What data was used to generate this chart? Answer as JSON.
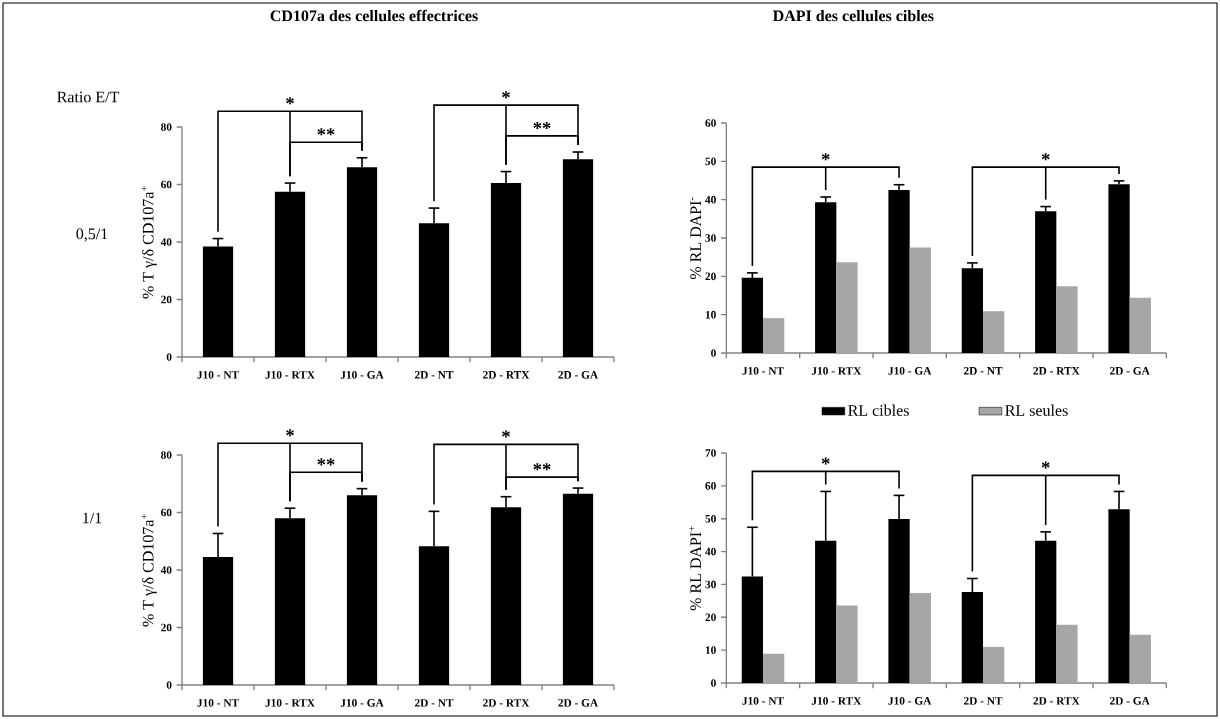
{
  "chart_data": [
    {
      "type": "bar",
      "title": "CD107a des cellules effectrices",
      "ylabel": "% T γ/δ CD107a$^{+}$",
      "categories": [
        "J10 - NT",
        "J10 - RTX",
        "J10 - GA",
        "2D - NT",
        "2D - RTX",
        "2D - GA"
      ],
      "series": [
        {
          "color": "#000000",
          "values": [
            38.4,
            57.5,
            66,
            46.5,
            60.5,
            68.8
          ],
          "errors": [
            [
              38.4,
              41.2
            ],
            [
              57.5,
              60.5
            ],
            [
              66,
              69.3
            ],
            [
              46.5,
              51.8
            ],
            [
              60.5,
              64.5
            ],
            [
              68.8,
              71.3
            ]
          ]
        }
      ],
      "ylim": [
        0,
        80
      ],
      "yticks": [
        0,
        20,
        40,
        60,
        80
      ],
      "annotations": [
        "Ratio E/T",
        "0,5/1",
        "*",
        "**",
        "*",
        "**"
      ]
    },
    {
      "type": "bar",
      "title": "DAPI des cellules cibles",
      "ylabel": "% RL DAPI$^{-}$",
      "categories": [
        "J10 - NT",
        "J10 - RTX",
        "J10 - GA",
        "2D - NT",
        "2D - RTX",
        "2D - GA"
      ],
      "series": [
        {
          "name": "RL cibles",
          "color": "#000000",
          "values": [
            19.6,
            39.3,
            42.5,
            22.1,
            37,
            44
          ],
          "errors": [
            [
              19.6,
              20.9
            ],
            [
              39.3,
              40.7
            ],
            [
              42.5,
              43.9
            ],
            [
              22.1,
              23.5
            ],
            [
              37,
              38.2
            ],
            [
              44,
              44.9
            ]
          ]
        },
        {
          "name": "RL seules",
          "color": "#a6a6a6",
          "values": [
            9.1,
            23.7,
            27.5,
            10.9,
            17.4,
            14.4
          ]
        }
      ],
      "ylim": [
        0,
        60
      ],
      "yticks": [
        0,
        10,
        20,
        30,
        40,
        50,
        60
      ],
      "legend": "bottom",
      "annotations": [
        "*",
        "*"
      ]
    },
    {
      "type": "bar",
      "ylabel": "% T γ/δ CD107a$^{+}$",
      "categories": [
        "J10 - NT",
        "J10 - RTX",
        "J10 - GA",
        "2D - NT",
        "2D - RTX",
        "2D - GA"
      ],
      "series": [
        {
          "color": "#000000",
          "values": [
            44.5,
            58,
            66,
            48.3,
            61.8,
            66.5
          ],
          "errors": [
            [
              44.5,
              52.7
            ],
            [
              58,
              61.5
            ],
            [
              66,
              68.3
            ],
            [
              48.3,
              60.4
            ],
            [
              61.8,
              65.5
            ],
            [
              66.5,
              68.5
            ]
          ]
        }
      ],
      "ylim": [
        0,
        80
      ],
      "yticks": [
        0,
        20,
        40,
        60,
        80
      ],
      "annotations": [
        "1/1",
        "*",
        "**",
        "*",
        "**"
      ]
    },
    {
      "type": "bar",
      "ylabel": "% RL DAPI$^{+}$",
      "categories": [
        "J10 - NT",
        "J10 - RTX",
        "J10 - GA",
        "2D - NT",
        "2D - RTX",
        "2D - GA"
      ],
      "series": [
        {
          "color": "#000000",
          "values": [
            32.4,
            43.3,
            49.9,
            27.7,
            43.3,
            52.9
          ],
          "errors": [
            [
              32.4,
              47.4
            ],
            [
              43.3,
              58.3
            ],
            [
              49.9,
              57.1
            ],
            [
              27.7,
              31.8
            ],
            [
              43.3,
              46
            ],
            [
              52.9,
              58.3
            ]
          ]
        },
        {
          "color": "#a6a6a6",
          "values": [
            8.9,
            23.6,
            27.4,
            11,
            17.7,
            14.7
          ]
        }
      ],
      "ylim": [
        0,
        70
      ],
      "yticks": [
        0,
        10,
        20,
        30,
        40,
        50,
        60,
        70
      ],
      "annotations": [
        "*",
        "*"
      ]
    }
  ]
}
